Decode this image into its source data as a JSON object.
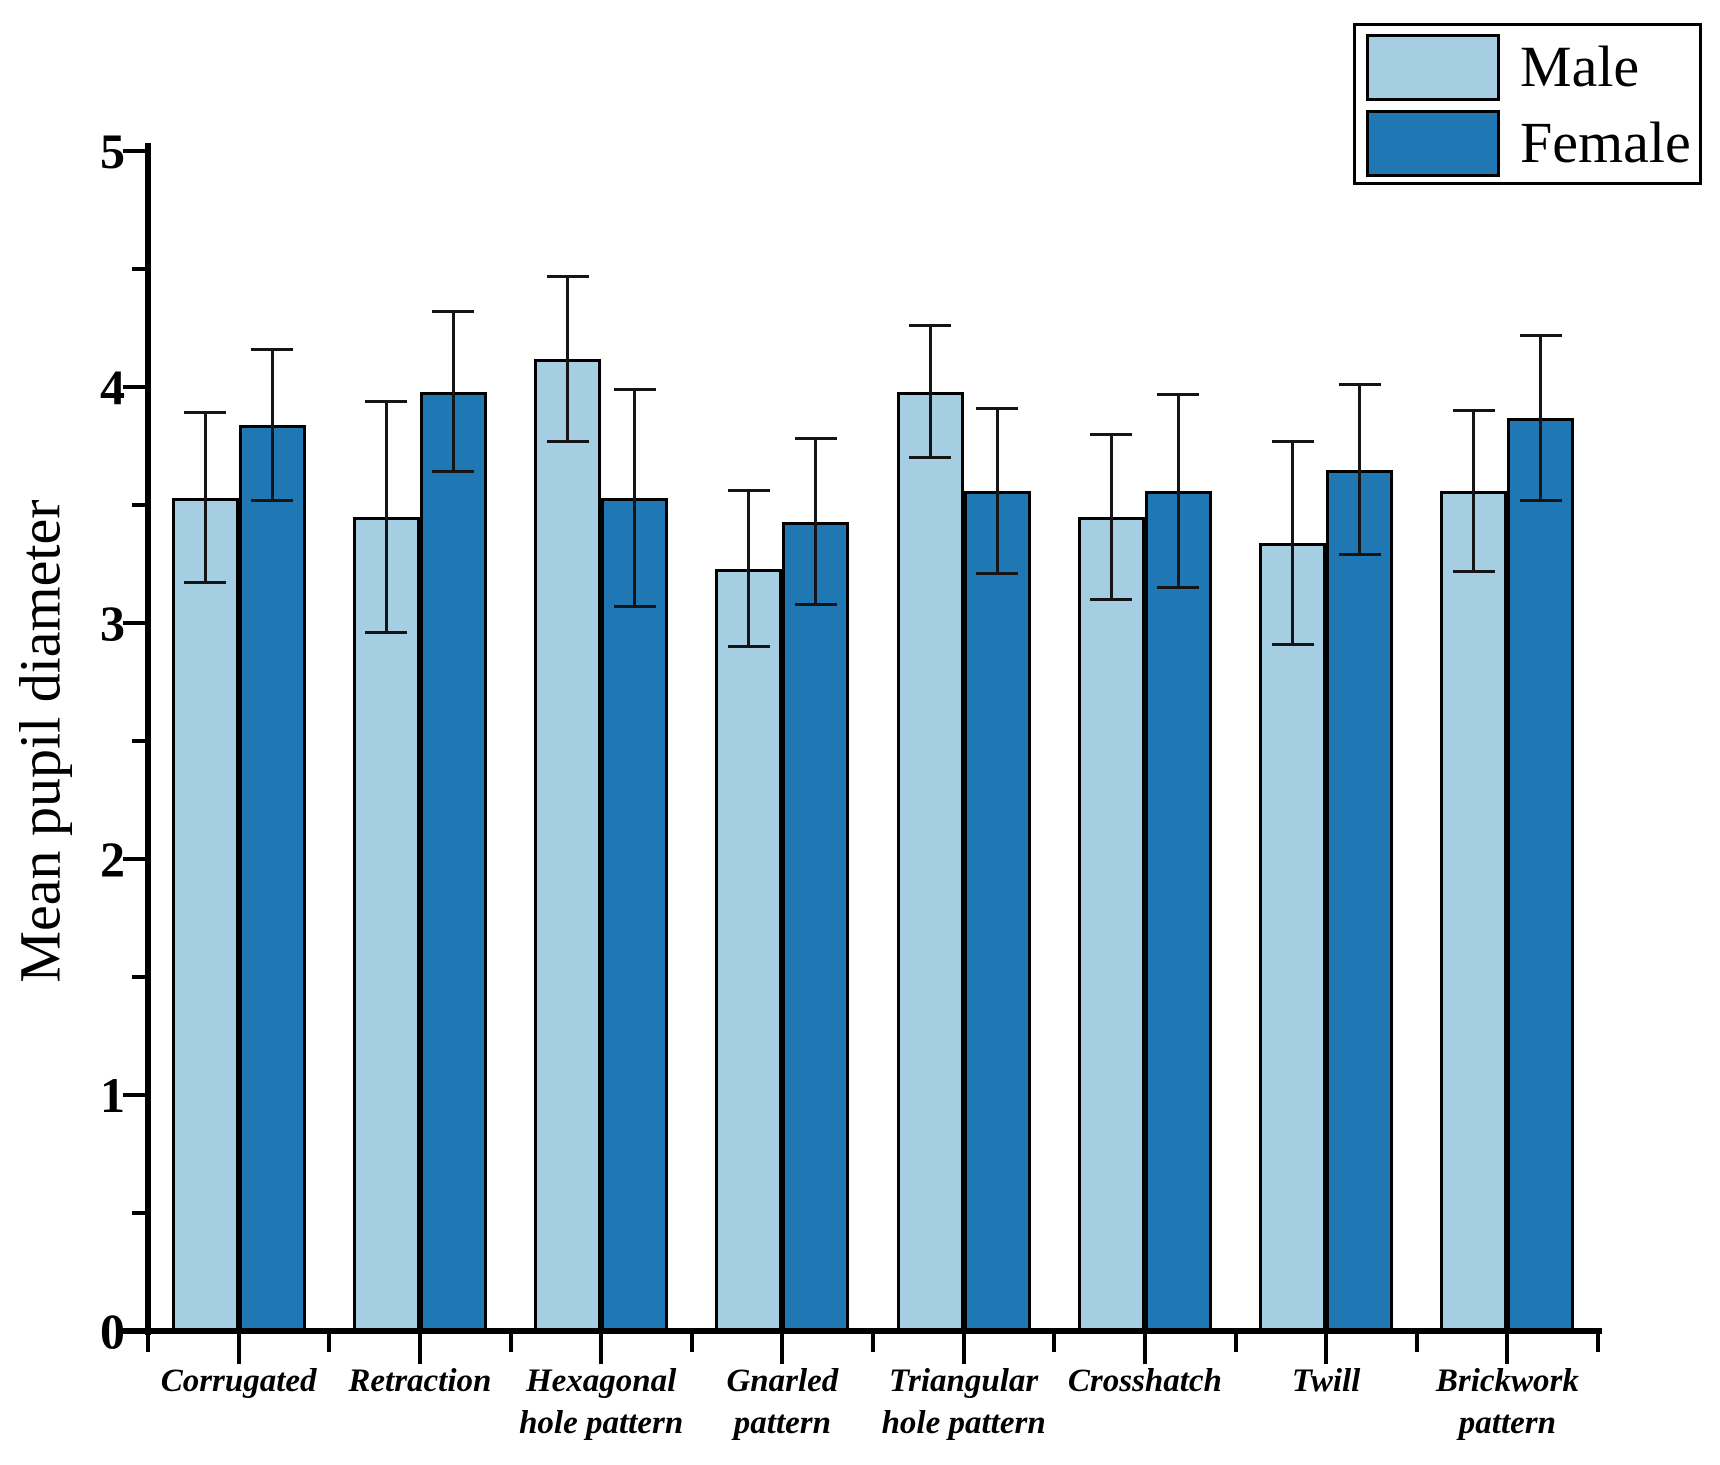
{
  "chart_data": {
    "type": "bar",
    "title": "",
    "ylabel": "Mean pupil diameter",
    "xlabel": "",
    "ylim": [
      0,
      5
    ],
    "y_major_ticks": [
      0,
      1,
      2,
      3,
      4,
      5
    ],
    "y_minor_step": 0.5,
    "grid": "off",
    "legend_position": "top-right",
    "categories": [
      [
        "Corrugated"
      ],
      [
        "Retraction"
      ],
      [
        "Hexagonal",
        "hole pattern"
      ],
      [
        "Gnarled",
        "pattern"
      ],
      [
        "Triangular",
        "hole pattern"
      ],
      [
        "Crosshatch"
      ],
      [
        "Twill"
      ],
      [
        "Brickwork",
        "pattern"
      ]
    ],
    "series": [
      {
        "name": "Male",
        "color": "#A6CEE3",
        "values": [
          3.53,
          3.45,
          4.12,
          3.23,
          3.98,
          3.45,
          3.34,
          3.56
        ],
        "errors": [
          0.36,
          0.49,
          0.35,
          0.33,
          0.28,
          0.35,
          0.43,
          0.34
        ]
      },
      {
        "name": "Female",
        "color": "#1F78B4",
        "values": [
          3.84,
          3.98,
          3.53,
          3.43,
          3.56,
          3.56,
          3.65,
          3.87
        ],
        "errors": [
          0.32,
          0.34,
          0.46,
          0.35,
          0.35,
          0.41,
          0.36,
          0.35
        ]
      }
    ]
  }
}
